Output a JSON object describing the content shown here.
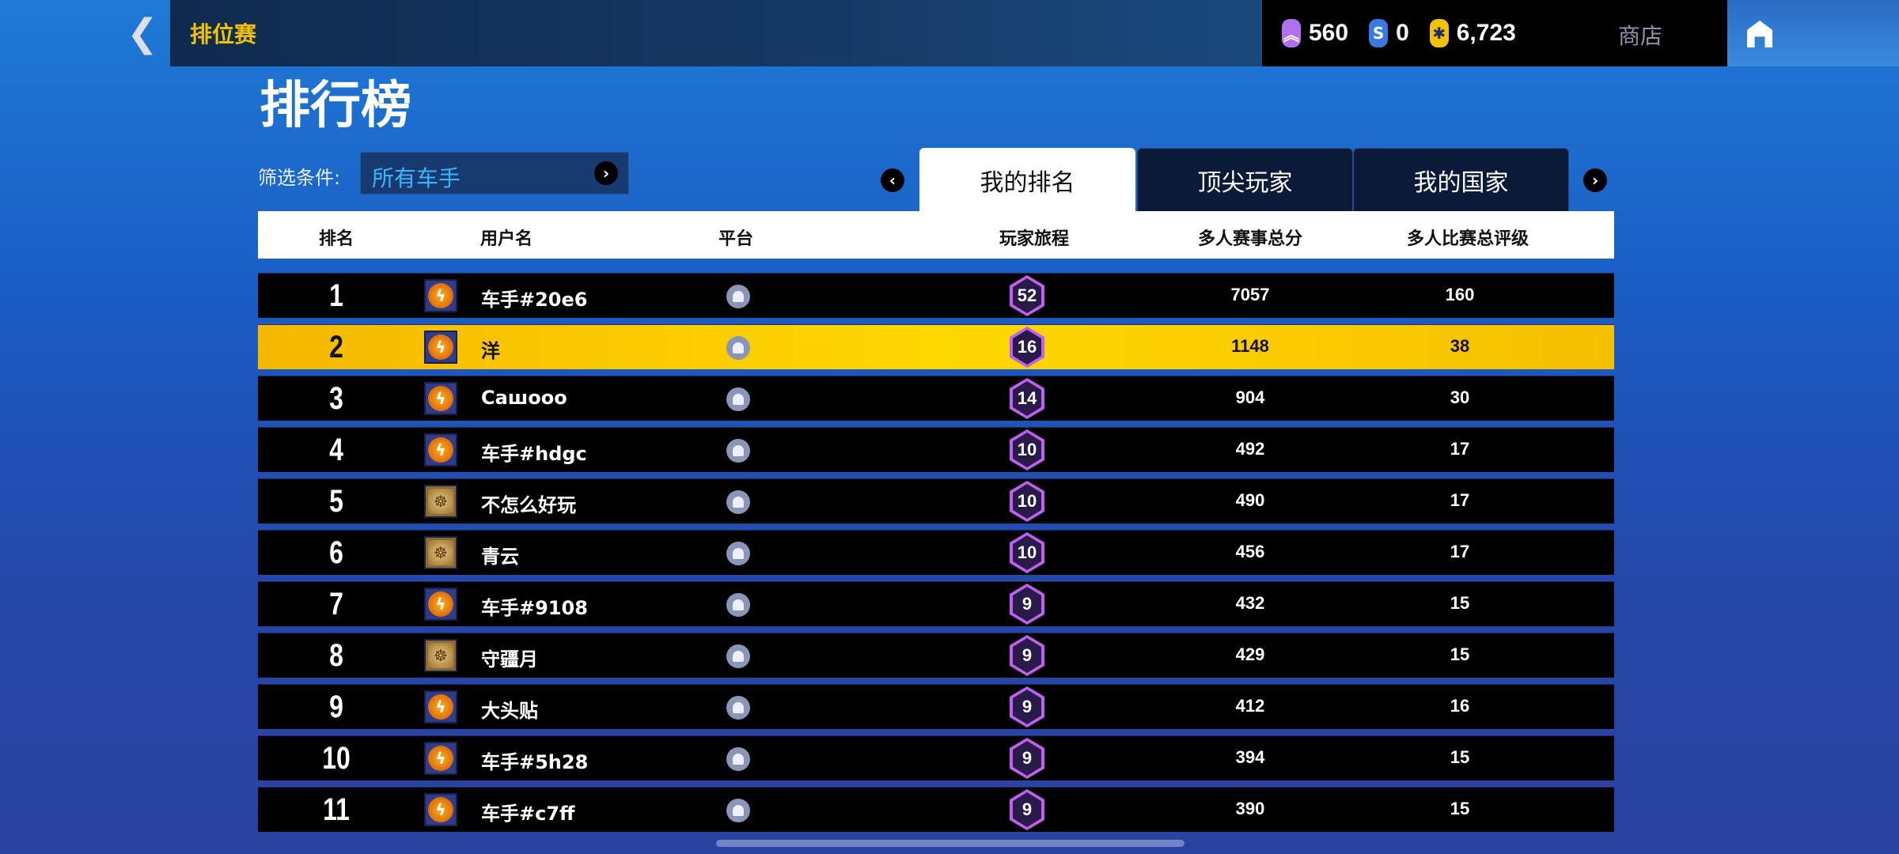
{
  "topbar": {
    "back_icon": "chevron-left-icon",
    "section_title": "排位赛",
    "currencies": [
      {
        "icon": "rank-chevron-icon",
        "value": "560",
        "color": "#b070f0"
      },
      {
        "icon": "s-token-icon",
        "value": "0",
        "color": "#3a7ae0"
      },
      {
        "icon": "snowflake-coin-icon",
        "value": "6,723",
        "color": "#f2c200"
      }
    ],
    "shop_label": "商店",
    "home_icon": "home-icon"
  },
  "page_title": "排行榜",
  "filter": {
    "label": "筛选条件:",
    "value": "所有车手"
  },
  "tabs": [
    {
      "label": "我的排名",
      "active": true
    },
    {
      "label": "顶尖玩家",
      "active": false
    },
    {
      "label": "我的国家",
      "active": false
    }
  ],
  "columns": [
    "排名",
    "用户名",
    "平台",
    "玩家旅程",
    "多人赛事总分",
    "多人比赛总评级"
  ],
  "rows": [
    {
      "rank": "1",
      "avatar": "lightning",
      "name": "车手#20e6",
      "platform": "android",
      "journey": "52",
      "score": "7057",
      "rating": "160"
    },
    {
      "rank": "2",
      "avatar": "lightning",
      "name": "洋",
      "platform": "android",
      "journey": "16",
      "score": "1148",
      "rating": "38",
      "highlight": true
    },
    {
      "rank": "3",
      "avatar": "lightning",
      "name": "Сашооо",
      "platform": "android",
      "journey": "14",
      "score": "904",
      "rating": "30"
    },
    {
      "rank": "4",
      "avatar": "lightning",
      "name": "车手#hdgc",
      "platform": "android",
      "journey": "10",
      "score": "492",
      "rating": "17"
    },
    {
      "rank": "5",
      "avatar": "wheel",
      "name": "不怎么好玩",
      "platform": "android",
      "journey": "10",
      "score": "490",
      "rating": "17"
    },
    {
      "rank": "6",
      "avatar": "wheel",
      "name": "青云",
      "platform": "android",
      "journey": "10",
      "score": "456",
      "rating": "17"
    },
    {
      "rank": "7",
      "avatar": "lightning",
      "name": "车手#9108",
      "platform": "android",
      "journey": "9",
      "score": "432",
      "rating": "15"
    },
    {
      "rank": "8",
      "avatar": "wheel",
      "name": "守疆月",
      "platform": "android",
      "journey": "9",
      "score": "429",
      "rating": "15"
    },
    {
      "rank": "9",
      "avatar": "lightning",
      "name": "大头贴",
      "platform": "android",
      "journey": "9",
      "score": "412",
      "rating": "16"
    },
    {
      "rank": "10",
      "avatar": "lightning",
      "name": "车手#5h28",
      "platform": "android",
      "journey": "9",
      "score": "394",
      "rating": "15"
    },
    {
      "rank": "11",
      "avatar": "lightning",
      "name": "车手#c7ff",
      "platform": "android",
      "journey": "9",
      "score": "390",
      "rating": "15"
    }
  ],
  "colors": {
    "highlight": "#ffd800",
    "accent": "#39b6ff",
    "badge": "#c060f0"
  }
}
